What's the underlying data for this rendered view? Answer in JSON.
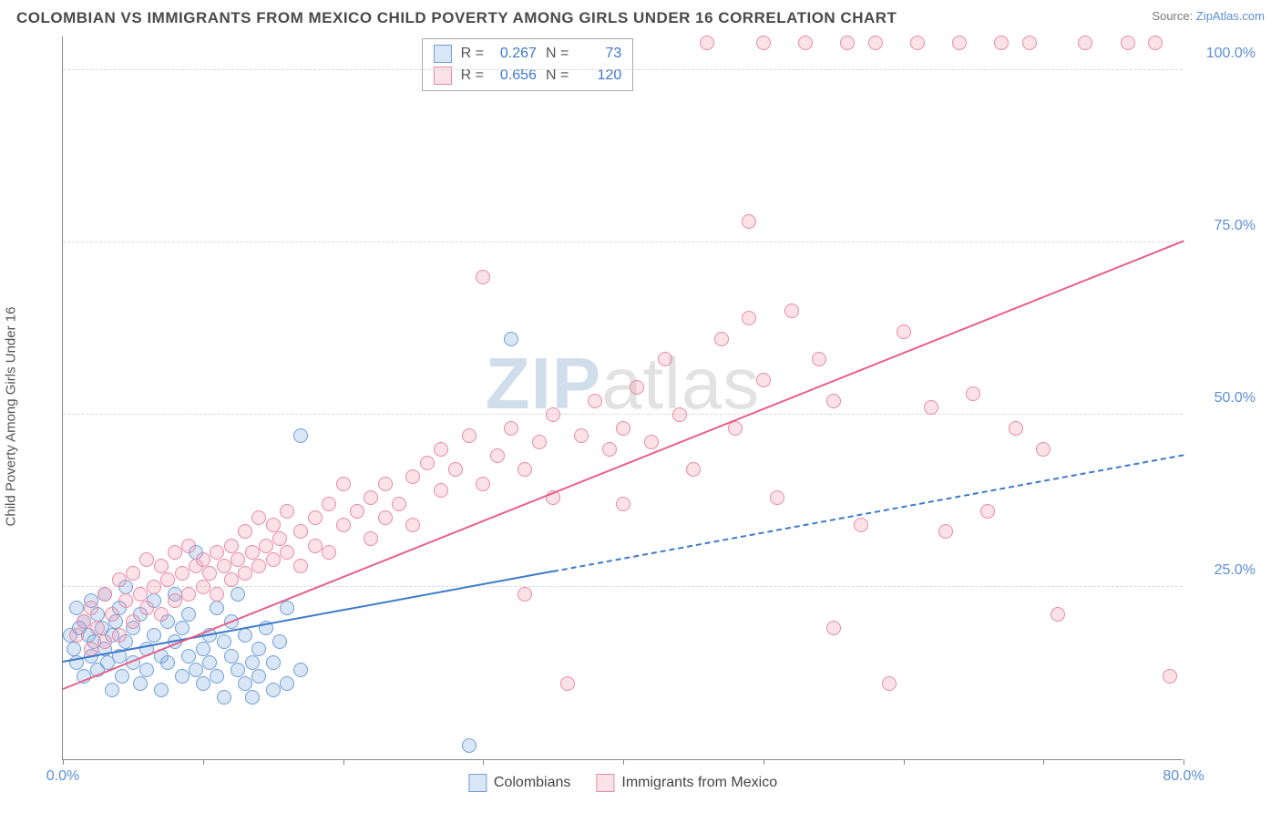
{
  "title": "COLOMBIAN VS IMMIGRANTS FROM MEXICO CHILD POVERTY AMONG GIRLS UNDER 16 CORRELATION CHART",
  "source_label": "Source:",
  "source_link": "ZipAtlas.com",
  "yaxis_label": "Child Poverty Among Girls Under 16",
  "watermark_a": "ZIP",
  "watermark_b": "atlas",
  "chart": {
    "type": "scatter",
    "xlim": [
      0,
      80
    ],
    "ylim": [
      0,
      105
    ],
    "xticks": [
      0,
      10,
      20,
      30,
      40,
      50,
      60,
      70,
      80
    ],
    "xtick_labels": {
      "0": "0.0%",
      "80": "80.0%"
    },
    "yticks": [
      25,
      50,
      75,
      100
    ],
    "ytick_labels": [
      "25.0%",
      "50.0%",
      "75.0%",
      "100.0%"
    ],
    "background_color": "#ffffff",
    "grid_color": "#d8d8d8",
    "axis_color": "#888888",
    "tick_label_color": "#5b8fd6",
    "marker_radius": 8,
    "marker_stroke_width": 1.5,
    "series": [
      {
        "name": "Colombians",
        "fill": "rgba(120,165,220,0.28)",
        "stroke": "#6f9fd8",
        "R": "0.267",
        "N": "73",
        "trend": {
          "x1": 0,
          "y1": 14,
          "x2": 80,
          "y2": 44,
          "solid_until_x": 35,
          "color": "#3d7acb"
        },
        "points": [
          [
            0.5,
            18
          ],
          [
            0.8,
            16
          ],
          [
            1,
            22
          ],
          [
            1,
            14
          ],
          [
            1.2,
            19
          ],
          [
            1.5,
            20
          ],
          [
            1.5,
            12
          ],
          [
            1.8,
            18
          ],
          [
            2,
            23
          ],
          [
            2,
            15
          ],
          [
            2.2,
            17
          ],
          [
            2.5,
            21
          ],
          [
            2.5,
            13
          ],
          [
            2.8,
            19
          ],
          [
            3,
            16
          ],
          [
            3,
            24
          ],
          [
            3.2,
            14
          ],
          [
            3.5,
            18
          ],
          [
            3.5,
            10
          ],
          [
            3.8,
            20
          ],
          [
            4,
            15
          ],
          [
            4,
            22
          ],
          [
            4.2,
            12
          ],
          [
            4.5,
            17
          ],
          [
            4.5,
            25
          ],
          [
            5,
            14
          ],
          [
            5,
            19
          ],
          [
            5.5,
            11
          ],
          [
            5.5,
            21
          ],
          [
            6,
            16
          ],
          [
            6,
            13
          ],
          [
            6.5,
            18
          ],
          [
            6.5,
            23
          ],
          [
            7,
            15
          ],
          [
            7,
            10
          ],
          [
            7.5,
            20
          ],
          [
            7.5,
            14
          ],
          [
            8,
            17
          ],
          [
            8,
            24
          ],
          [
            8.5,
            12
          ],
          [
            8.5,
            19
          ],
          [
            9,
            15
          ],
          [
            9,
            21
          ],
          [
            9.5,
            13
          ],
          [
            9.5,
            30
          ],
          [
            10,
            16
          ],
          [
            10,
            11
          ],
          [
            10.5,
            18
          ],
          [
            10.5,
            14
          ],
          [
            11,
            22
          ],
          [
            11,
            12
          ],
          [
            11.5,
            17
          ],
          [
            11.5,
            9
          ],
          [
            12,
            15
          ],
          [
            12,
            20
          ],
          [
            12.5,
            13
          ],
          [
            12.5,
            24
          ],
          [
            13,
            11
          ],
          [
            13,
            18
          ],
          [
            13.5,
            14
          ],
          [
            13.5,
            9
          ],
          [
            14,
            16
          ],
          [
            14,
            12
          ],
          [
            14.5,
            19
          ],
          [
            15,
            10
          ],
          [
            15,
            14
          ],
          [
            15.5,
            17
          ],
          [
            16,
            11
          ],
          [
            16,
            22
          ],
          [
            17,
            47
          ],
          [
            17,
            13
          ],
          [
            29,
            2
          ],
          [
            32,
            61
          ]
        ]
      },
      {
        "name": "Immigrants from Mexico",
        "fill": "rgba(240,150,175,0.28)",
        "stroke": "#e68aa6",
        "R": "0.656",
        "N": "120",
        "trend": {
          "x1": 0,
          "y1": 10,
          "x2": 80,
          "y2": 75,
          "solid_until_x": 80,
          "color": "#e85f87"
        },
        "points": [
          [
            1,
            18
          ],
          [
            1.5,
            20
          ],
          [
            2,
            22
          ],
          [
            2,
            16
          ],
          [
            2.5,
            19
          ],
          [
            3,
            24
          ],
          [
            3,
            17
          ],
          [
            3.5,
            21
          ],
          [
            4,
            26
          ],
          [
            4,
            18
          ],
          [
            4.5,
            23
          ],
          [
            5,
            20
          ],
          [
            5,
            27
          ],
          [
            5.5,
            24
          ],
          [
            6,
            22
          ],
          [
            6,
            29
          ],
          [
            6.5,
            25
          ],
          [
            7,
            21
          ],
          [
            7,
            28
          ],
          [
            7.5,
            26
          ],
          [
            8,
            23
          ],
          [
            8,
            30
          ],
          [
            8.5,
            27
          ],
          [
            9,
            24
          ],
          [
            9,
            31
          ],
          [
            9.5,
            28
          ],
          [
            10,
            25
          ],
          [
            10,
            29
          ],
          [
            10.5,
            27
          ],
          [
            11,
            30
          ],
          [
            11,
            24
          ],
          [
            11.5,
            28
          ],
          [
            12,
            31
          ],
          [
            12,
            26
          ],
          [
            12.5,
            29
          ],
          [
            13,
            33
          ],
          [
            13,
            27
          ],
          [
            13.5,
            30
          ],
          [
            14,
            28
          ],
          [
            14,
            35
          ],
          [
            14.5,
            31
          ],
          [
            15,
            29
          ],
          [
            15,
            34
          ],
          [
            15.5,
            32
          ],
          [
            16,
            30
          ],
          [
            16,
            36
          ],
          [
            17,
            33
          ],
          [
            17,
            28
          ],
          [
            18,
            35
          ],
          [
            18,
            31
          ],
          [
            19,
            37
          ],
          [
            19,
            30
          ],
          [
            20,
            34
          ],
          [
            20,
            40
          ],
          [
            21,
            36
          ],
          [
            22,
            38
          ],
          [
            22,
            32
          ],
          [
            23,
            40
          ],
          [
            23,
            35
          ],
          [
            24,
            37
          ],
          [
            25,
            41
          ],
          [
            25,
            34
          ],
          [
            26,
            43
          ],
          [
            27,
            39
          ],
          [
            27,
            45
          ],
          [
            28,
            42
          ],
          [
            29,
            47
          ],
          [
            30,
            40
          ],
          [
            30,
            70
          ],
          [
            31,
            44
          ],
          [
            32,
            48
          ],
          [
            33,
            42
          ],
          [
            33,
            24
          ],
          [
            34,
            46
          ],
          [
            35,
            50
          ],
          [
            35,
            38
          ],
          [
            36,
            11
          ],
          [
            37,
            47
          ],
          [
            38,
            52
          ],
          [
            39,
            45
          ],
          [
            40,
            48
          ],
          [
            40,
            37
          ],
          [
            41,
            54
          ],
          [
            42,
            46
          ],
          [
            43,
            58
          ],
          [
            44,
            50
          ],
          [
            45,
            42
          ],
          [
            46,
            104
          ],
          [
            47,
            61
          ],
          [
            48,
            48
          ],
          [
            49,
            64
          ],
          [
            49,
            78
          ],
          [
            50,
            55
          ],
          [
            50,
            104
          ],
          [
            51,
            38
          ],
          [
            52,
            65
          ],
          [
            53,
            104
          ],
          [
            54,
            58
          ],
          [
            55,
            52
          ],
          [
            55,
            19
          ],
          [
            56,
            104
          ],
          [
            57,
            34
          ],
          [
            58,
            104
          ],
          [
            59,
            11
          ],
          [
            60,
            62
          ],
          [
            61,
            104
          ],
          [
            62,
            51
          ],
          [
            63,
            33
          ],
          [
            64,
            104
          ],
          [
            65,
            53
          ],
          [
            66,
            36
          ],
          [
            67,
            104
          ],
          [
            68,
            48
          ],
          [
            69,
            104
          ],
          [
            70,
            45
          ],
          [
            71,
            21
          ],
          [
            73,
            104
          ],
          [
            76,
            104
          ],
          [
            78,
            104
          ],
          [
            79,
            12
          ]
        ]
      }
    ]
  },
  "legend": {
    "stat_labels": {
      "R": "R =",
      "N": "N ="
    }
  }
}
